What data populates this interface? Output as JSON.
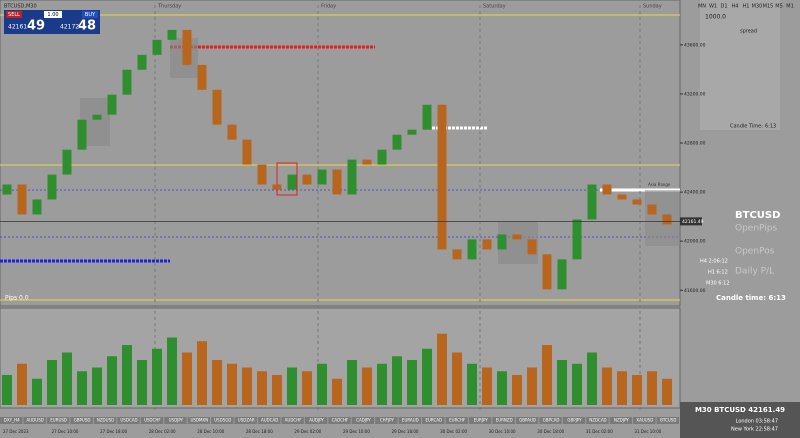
{
  "header": {
    "symbol": "BTCUSD,M30"
  },
  "trade_panel": {
    "sell": "SELL",
    "buy": "BUY",
    "lot": "1.00",
    "bid_main": "42161",
    "bid_big": "49",
    "ask_main": "42172",
    "ask_big": "48"
  },
  "timeframes": [
    "M1",
    "M5",
    "M15",
    "M30",
    "H1",
    "H4",
    "D1",
    "W1",
    "MN"
  ],
  "days": [
    "Thursday",
    "Friday",
    "Saturday",
    "Sunday"
  ],
  "chart_data": [
    {
      "type": "candlestick",
      "open": [
        42380,
        42462,
        42218,
        42340,
        42543,
        42746,
        42990,
        43031,
        43194,
        43397,
        43519,
        43641,
        43722,
        43437,
        43234,
        42950,
        42828,
        42624,
        42462,
        42421,
        42543,
        42462,
        42584,
        42381,
        42665,
        42624,
        42746,
        42868,
        42909,
        43112,
        41933,
        41852,
        42015,
        41933,
        42055,
        42015,
        41893,
        41608,
        41852,
        42177,
        42462,
        42381,
        42340,
        42299,
        42218
      ],
      "close": [
        42462,
        42218,
        42340,
        42543,
        42746,
        42990,
        43031,
        43194,
        43397,
        43519,
        43641,
        43722,
        43437,
        43234,
        42950,
        42828,
        42624,
        42462,
        42421,
        42543,
        42462,
        42584,
        42381,
        42665,
        42624,
        42746,
        42868,
        42909,
        43112,
        41933,
        41852,
        42015,
        41933,
        42055,
        42015,
        41893,
        41608,
        41852,
        42177,
        42462,
        42381,
        42340,
        42299,
        42218,
        42137
      ],
      "colors": {
        "up": "#2f8f2f",
        "down": "#b8651e"
      },
      "ylim": [
        41480,
        43925
      ],
      "yticks": [
        {
          "value": 41600,
          "label": "41600.00"
        },
        {
          "value": 42000,
          "label": "42000.00"
        },
        {
          "value": 42400,
          "label": "42400.00"
        },
        {
          "value": 42800,
          "label": "42800.00"
        },
        {
          "value": 43200,
          "label": "43200.00"
        },
        {
          "value": 43600,
          "label": "43600.00"
        }
      ],
      "current_price": 42161.49
    },
    {
      "type": "bar",
      "values": [
        40,
        55,
        35,
        60,
        70,
        45,
        50,
        65,
        80,
        60,
        75,
        90,
        70,
        85,
        60,
        55,
        50,
        45,
        40,
        50,
        45,
        55,
        35,
        60,
        50,
        55,
        65,
        60,
        75,
        95,
        70,
        55,
        50,
        45,
        40,
        50,
        80,
        60,
        55,
        70,
        50,
        45,
        40,
        45,
        35
      ],
      "ylim": [
        0,
        100
      ]
    }
  ],
  "info_panel": {
    "spread_label": "spread",
    "lot_value": "1000.0",
    "candle_time": "Candle Time:",
    "candle_time_value": "6:13"
  },
  "right_panel": {
    "symbol": "BTCUSD",
    "open_pips": "OpenPips",
    "open_pos": "OpenPos",
    "daily_pl": "Daily P/L",
    "h4": "H4 2:06:12",
    "h1": "H1 6:12",
    "m30": "M30 6:12",
    "candle_time": "Candle time:  6:13",
    "asia_range": "Asia Range",
    "pips": "Pips 0.0"
  },
  "footer": {
    "quote": "M30 BTCUSD 42161.49",
    "london": "London  03:58:47",
    "new_york": "New York  22:58:47"
  },
  "symbol_buttons": [
    "DXY_H4",
    "AUDUSD",
    "EURUSD",
    "GBPUSD",
    "NZDUSD",
    "USDCAD",
    "USDCHF",
    "USDJPY",
    "USDMXN",
    "USDSGD",
    "USDZAR",
    "AUDCAD",
    "AUDCHF",
    "AUDJPY",
    "CADCHF",
    "CADJPY",
    "CHFJPY",
    "EURAUD",
    "EURCAD",
    "EURCHF",
    "EURJPY",
    "EURNZD",
    "GBPAUD",
    "GBPCAD",
    "GBPJPY",
    "NZDCAD",
    "NZDJPY",
    "XAUUSD",
    "BTCUSD"
  ],
  "time_labels": [
    "27 Dec 2023",
    "27 Dec 10:00",
    "27 Dec 18:00",
    "28 Dec 02:00",
    "28 Dec 10:00",
    "28 Dec 18:00",
    "29 Dec 02:00",
    "29 Dec 10:00",
    "29 Dec 18:00",
    "30 Dec 02:00",
    "30 Dec 10:00",
    "30 Dec 18:00",
    "31 Dec 02:00",
    "31 Dec 10:00"
  ]
}
